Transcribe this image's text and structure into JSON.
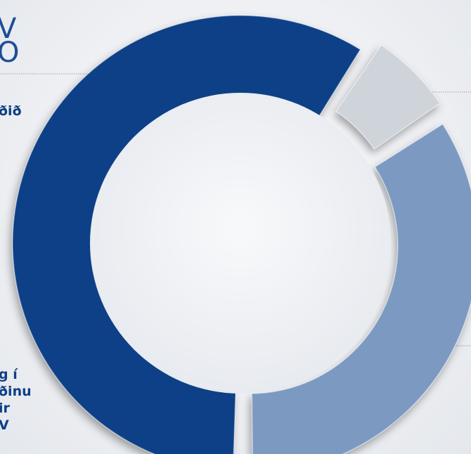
{
  "fragments": {
    "top": "V",
    "top2": "O",
    "mid": "ðið",
    "bottom": [
      "g í",
      "ðinu",
      "ir",
      "V"
    ]
  },
  "chart_data": {
    "type": "pie",
    "title": "",
    "legend": "none",
    "slices": [
      {
        "label": "",
        "value": 6.5,
        "color": "#cfd4db"
      },
      {
        "label": "",
        "value": 34.5,
        "color": "#7c99c2"
      },
      {
        "label": "",
        "value": 59.0,
        "color": "#0d3f86"
      }
    ]
  }
}
